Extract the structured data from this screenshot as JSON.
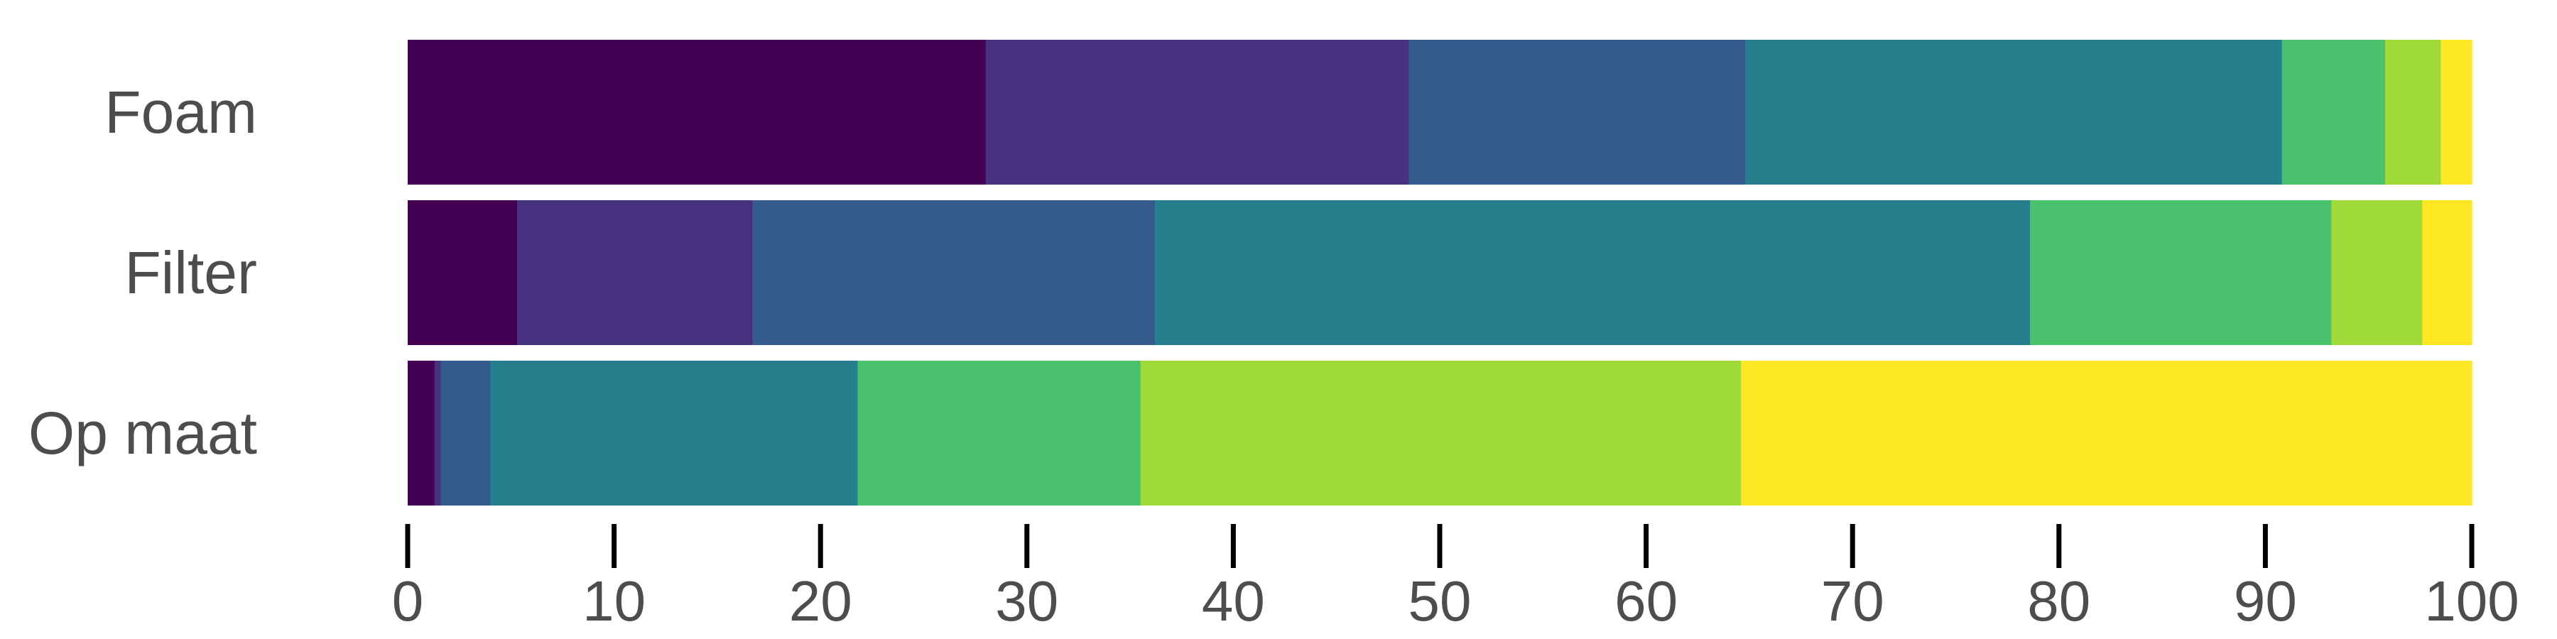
{
  "chart_data": {
    "type": "bar",
    "orientation": "horizontal",
    "stacked": true,
    "categories": [
      "Foam",
      "Filter",
      "Op maat"
    ],
    "series": [
      {
        "color": "#440154",
        "values": [
          28.0,
          5.3,
          1.3
        ]
      },
      {
        "color": "#46327E",
        "values": [
          20.5,
          11.4,
          0.3
        ]
      },
      {
        "color": "#365C8D",
        "values": [
          16.3,
          19.5,
          2.4
        ]
      },
      {
        "color": "#277F8E",
        "values": [
          26.0,
          42.4,
          17.8
        ]
      },
      {
        "color": "#1FA187",
        "values": [
          0.0,
          0.0,
          0.0
        ]
      },
      {
        "color": "#4AC16D",
        "values": [
          5.0,
          14.6,
          13.7
        ]
      },
      {
        "color": "#A0DA39",
        "values": [
          2.7,
          4.4,
          29.1
        ]
      },
      {
        "color": "#FDE725",
        "values": [
          1.5,
          2.4,
          35.4
        ]
      }
    ],
    "xlim": [
      0,
      100
    ],
    "xticks": [
      "0",
      "10",
      "20",
      "30",
      "40",
      "50",
      "60",
      "70",
      "80",
      "90",
      "100"
    ],
    "xlabel": "",
    "ylabel": "",
    "title": "",
    "grid": false,
    "legend": "none"
  }
}
